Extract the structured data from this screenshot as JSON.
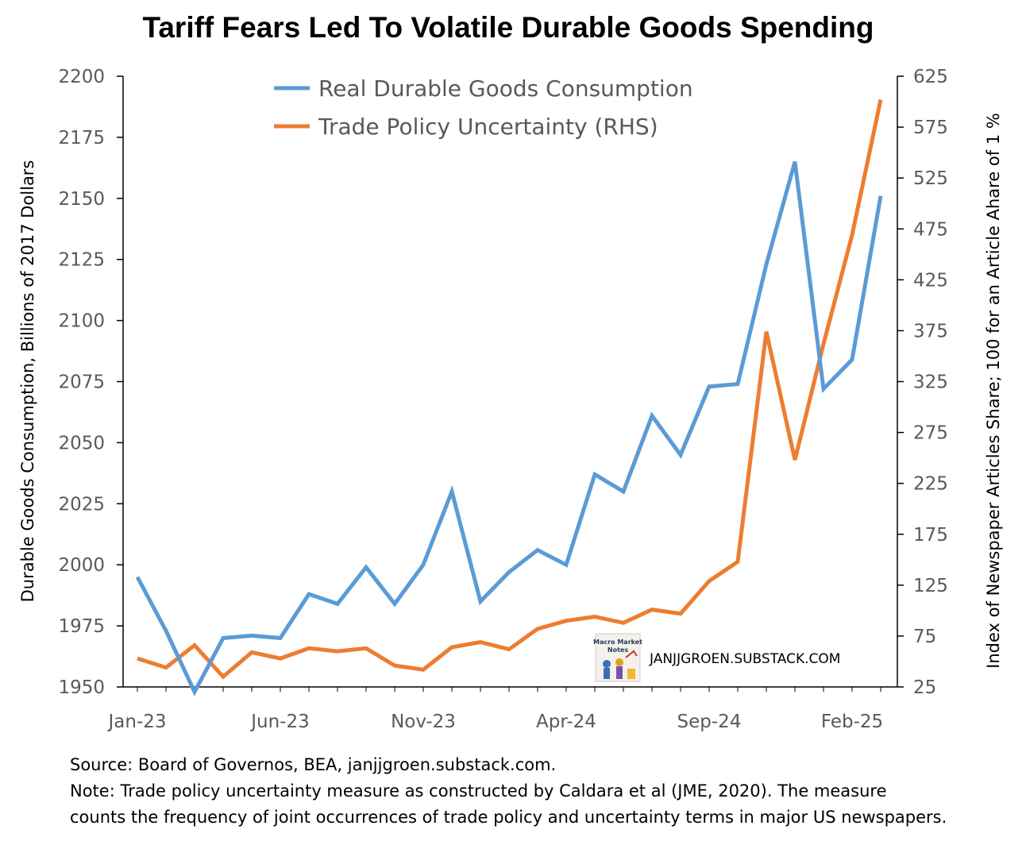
{
  "chart_data": {
    "type": "line",
    "title": "Tariff Fears Led To Volatile Durable Goods Spending",
    "ylabel": "Durable Goods Consumption, Billions of 2017 Dollars",
    "y2label": "Index of Newspaper Articles Share; 100 for an Article Ahare of 1 %",
    "ylim": [
      1950,
      2200
    ],
    "y2lim": [
      25,
      625
    ],
    "yticks": [
      "1950",
      "1975",
      "2000",
      "2025",
      "2050",
      "2075",
      "2100",
      "2125",
      "2150",
      "2175",
      "2200"
    ],
    "y2ticks": [
      "25",
      "75",
      "125",
      "175",
      "225",
      "275",
      "325",
      "375",
      "425",
      "475",
      "525",
      "575",
      "625"
    ],
    "xtick_labels": [
      "Jan-23",
      "Jun-23",
      "Nov-23",
      "Apr-24",
      "Sep-24",
      "Feb-25"
    ],
    "x": [
      "Jan-23",
      "Feb-23",
      "Mar-23",
      "Apr-23",
      "May-23",
      "Jun-23",
      "Jul-23",
      "Aug-23",
      "Sep-23",
      "Oct-23",
      "Nov-23",
      "Dec-23",
      "Jan-24",
      "Feb-24",
      "Mar-24",
      "Apr-24",
      "May-24",
      "Jun-24",
      "Jul-24",
      "Aug-24",
      "Sep-24",
      "Oct-24",
      "Nov-24",
      "Dec-24",
      "Jan-25",
      "Feb-25",
      "Mar-25"
    ],
    "series": [
      {
        "name": "Real Durable Goods Consumption",
        "axis": "left",
        "color": "#5b9bd5",
        "values": [
          1995,
          1973,
          1948,
          1970,
          1971,
          1970,
          1988,
          1984,
          1999,
          1984,
          2000,
          2030,
          1985,
          1997,
          2006,
          2000,
          2037,
          2030,
          2061,
          2045,
          2073,
          2074,
          2123,
          2165,
          2072,
          2084,
          2151
        ]
      },
      {
        "name": "Trade Policy Uncertainty (RHS)",
        "axis": "right",
        "color": "#ed7d31",
        "values": [
          53,
          44,
          66,
          35,
          59,
          53,
          63,
          60,
          63,
          46,
          42,
          64,
          69,
          62,
          82,
          90,
          94,
          88,
          101,
          97,
          129,
          148,
          374,
          248,
          362,
          469,
          602
        ]
      }
    ],
    "legend_position": "top-center",
    "grid": false
  },
  "watermark": {
    "logo_text": "Macro Market Notes",
    "text": "JANJJGROEN.SUBSTACK.COM"
  },
  "footnotes": {
    "source": "Source: Board of Governos, BEA, janjjgroen.substack.com.",
    "note_line1": "Note: Trade policy uncertainty measure as constructed by Caldara et al (JME, 2020). The measure",
    "note_line2": "counts the frequency of joint occurrences of trade policy and uncertainty terms in major US newspapers."
  }
}
